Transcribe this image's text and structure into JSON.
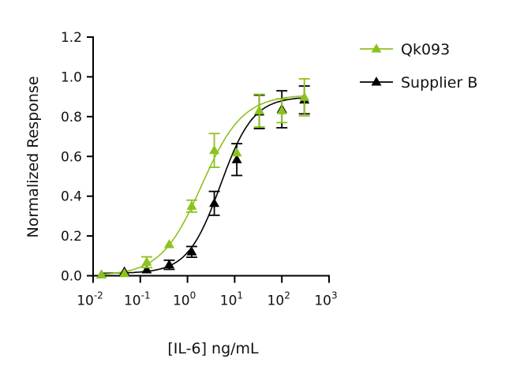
{
  "chart_data": {
    "type": "scatter",
    "title": "",
    "xlabel": "[IL-6] ng/mL",
    "ylabel": "Normalized Response",
    "xscale": "log",
    "xlim": [
      0.01,
      1000
    ],
    "ylim": [
      0,
      1.2
    ],
    "x_tick_labels": [
      {
        "base": "10",
        "exp": "-2"
      },
      {
        "base": "10",
        "exp": "-1"
      },
      {
        "base": "10",
        "exp": "0"
      },
      {
        "base": "10",
        "exp": "1"
      },
      {
        "base": "10",
        "exp": "2"
      },
      {
        "base": "10",
        "exp": "3"
      }
    ],
    "y_ticks": [
      "0.0",
      "0.2",
      "0.4",
      "0.6",
      "0.8",
      "1.0",
      "1.2"
    ],
    "grid": false,
    "legend": "top-right",
    "x": [
      0.015,
      0.046,
      0.137,
      0.41,
      1.23,
      3.7,
      11.1,
      33.3,
      100,
      300
    ],
    "series": [
      {
        "name": "Qk093",
        "color": "#8cc21e",
        "marker": "triangle",
        "values": [
          0.004,
          0.011,
          0.068,
          0.157,
          0.35,
          0.63,
          0.618,
          0.83,
          0.83,
          0.897
        ],
        "error": [
          0,
          0,
          0.027,
          0,
          0.03,
          0.085,
          0,
          0.082,
          0.06,
          0.093
        ],
        "fit": {
          "model": "4PL",
          "bottom": 0.0,
          "top": 0.91,
          "ec50": 2.0,
          "hill": 1.0
        }
      },
      {
        "name": "Supplier B",
        "color": "#000000",
        "marker": "triangle",
        "values": [
          0.004,
          0.02,
          0.03,
          0.055,
          0.12,
          0.364,
          0.584,
          0.824,
          0.837,
          0.884
        ],
        "error": [
          0,
          0,
          0,
          0.023,
          0.027,
          0.06,
          0.08,
          0.084,
          0.093,
          0.07
        ],
        "fit": {
          "model": "4PL",
          "bottom": 0.012,
          "top": 0.9,
          "ec50": 5.0,
          "hill": 1.25
        }
      }
    ]
  }
}
